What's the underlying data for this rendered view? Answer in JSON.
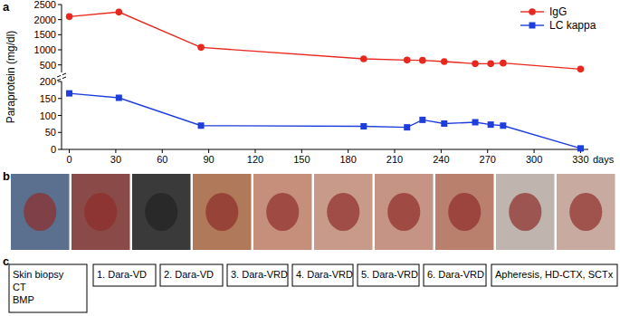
{
  "chart_data": [
    {
      "type": "line",
      "xlim": [
        -5,
        335
      ],
      "ylim": [
        250,
        2500
      ],
      "yticks": [
        500,
        1000,
        1500,
        2000,
        2500
      ],
      "tick_labels": "y",
      "legend": "upper-right",
      "x": [
        0,
        32,
        85,
        190,
        218,
        228,
        242,
        262,
        272,
        280,
        330
      ],
      "series": [
        {
          "name": "IgG",
          "color": "#e8281e",
          "marker": "circle",
          "line_style": "solid",
          "values": [
            2100,
            2250,
            1080,
            700,
            660,
            650,
            610,
            540,
            540,
            560,
            360
          ]
        }
      ]
    },
    {
      "type": "line",
      "xlim": [
        -5,
        335
      ],
      "ylim": [
        0,
        200
      ],
      "xticks": [
        0,
        30,
        60,
        90,
        120,
        150,
        180,
        210,
        240,
        270,
        300,
        330
      ],
      "yticks": [
        0,
        50,
        100,
        150,
        200
      ],
      "y_label": "Paraprotein (mg/dl)",
      "x_label": "days",
      "x": [
        0,
        32,
        85,
        190,
        218,
        228,
        242,
        262,
        272,
        280,
        330
      ],
      "series": [
        {
          "name": "LC kappa",
          "color": "#1e3edb",
          "marker": "square",
          "line_style": "solid",
          "values": [
            165,
            152,
            70,
            68,
            65,
            87,
            76,
            80,
            73,
            70,
            3
          ]
        }
      ]
    }
  ],
  "figure": {
    "panel_labels": [
      "a",
      "b",
      "c"
    ],
    "timeline": [
      [
        "Skin biopsy",
        "CT",
        "BMP"
      ],
      [
        "1. Dara-VD"
      ],
      [
        "2. Dara-VD"
      ],
      [
        "3. Dara-VRD"
      ],
      [
        "4. Dara-VRD"
      ],
      [
        "5. Dara-VRD"
      ],
      [
        "6. Dara-VRD"
      ],
      [
        "Apheresis, HD-CTX, SCTx"
      ]
    ]
  }
}
